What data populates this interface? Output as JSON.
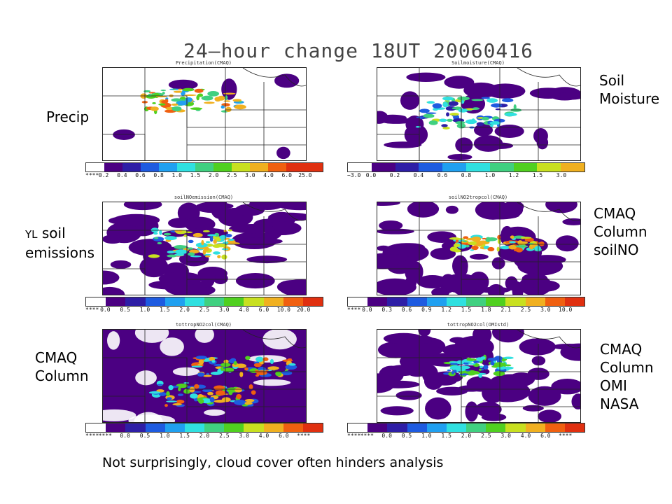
{
  "title": "24—hour change 18UT 20060416",
  "footer": "Not surprisingly, cloud cover often hinders analysis",
  "colors": {
    "scale": [
      "#ffffff",
      "#4b0082",
      "#2e1ea6",
      "#1e5be0",
      "#20a0f0",
      "#30e0e0",
      "#40d080",
      "#50d020",
      "#c8e020",
      "#f0b020",
      "#f06010",
      "#e03010"
    ],
    "cloud": "#4b0082"
  },
  "labels": {
    "precip": "Precip",
    "soil_moisture_1": "Soil",
    "soil_moisture_2": "Moisture",
    "yl_prefix": "YL",
    "yl_soil": "soil",
    "yl_emissions": "emissions",
    "cmaq_soilno_1": "CMAQ",
    "cmaq_soilno_2": "Column",
    "cmaq_soilno_3": "soilNO",
    "cmaq_col_1": "CMAQ",
    "cmaq_col_2": "Column",
    "omi_1": "CMAQ",
    "omi_2": "Column",
    "omi_3": "OMI",
    "omi_4": "NASA"
  },
  "panels": [
    {
      "id": "precip",
      "map_title": "Precipitation(CMAQ)",
      "ticks": [
        "****",
        "0.2",
        "0.4",
        "0.6",
        "0.8",
        "1.0",
        "1.5",
        "2.0",
        "2.5",
        "3.0",
        "4.0",
        "6.0",
        "25.0"
      ]
    },
    {
      "id": "soilmoisture",
      "map_title": "Soilmoisture(CMAQ)",
      "ticks": [
        "−3.0",
        "0.0",
        "0.2",
        "0.4",
        "0.6",
        "0.8",
        "1.0",
        "1.2",
        "1.5",
        "3.0"
      ]
    },
    {
      "id": "soilno",
      "map_title": "soilNOemission(CMAQ)",
      "ticks": [
        "****",
        "0.0",
        "0.5",
        "1.0",
        "1.5",
        "2.0",
        "2.5",
        "3.0",
        "4.0",
        "6.0",
        "10.0",
        "20.0"
      ]
    },
    {
      "id": "soilno2",
      "map_title": "soilNO2tropcol(CMAQ)",
      "ticks": [
        "****",
        "0.0",
        "0.3",
        "0.6",
        "0.9",
        "1.2",
        "1.5",
        "1.8",
        "2.1",
        "2.5",
        "3.0",
        "10.0"
      ]
    },
    {
      "id": "cmaqcol",
      "map_title": "tottropNO2col(CMAQ)",
      "ticks": [
        "****",
        "****",
        "0.0",
        "0.5",
        "1.0",
        "1.5",
        "2.0",
        "2.5",
        "3.0",
        "4.0",
        "6.0",
        "****"
      ]
    },
    {
      "id": "omi",
      "map_title": "tottropNO2col(OMIstd)",
      "ticks": [
        "****",
        "****",
        "0.0",
        "0.5",
        "1.0",
        "1.5",
        "2.0",
        "2.5",
        "3.0",
        "4.0",
        "6.0",
        "****"
      ]
    }
  ]
}
